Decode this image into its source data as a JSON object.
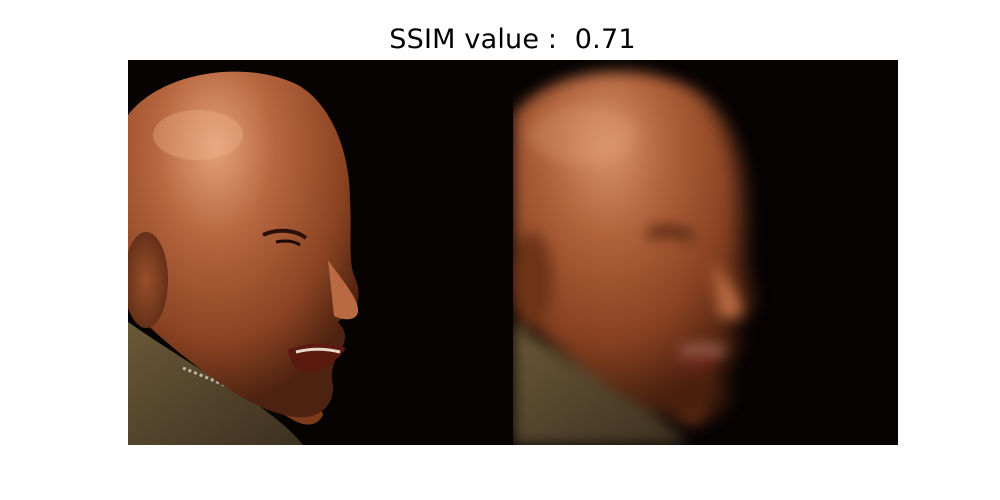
{
  "figure": {
    "title": "SSIM value :  0.71",
    "background": "#ffffff"
  },
  "panels": [
    {
      "name": "original-image",
      "description_visible": false,
      "style": "sharp"
    },
    {
      "name": "distorted-image",
      "description_visible": false,
      "style": "motion-blurred"
    }
  ],
  "colors": {
    "backdrop": "#060202",
    "skin": "#a85a36",
    "skin_highlight": "#d38a62",
    "skin_shadow": "#6b3219",
    "uniform": "#5a4a2e"
  }
}
